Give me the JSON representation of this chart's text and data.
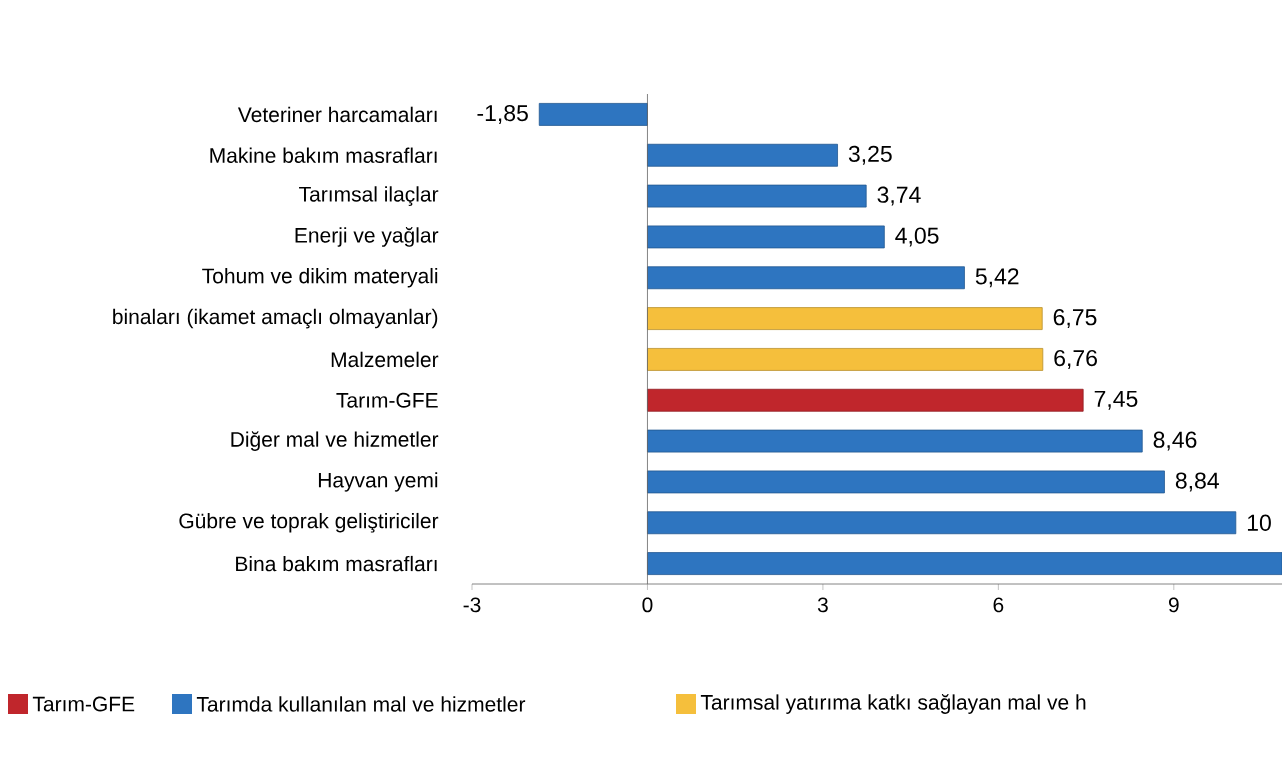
{
  "chart_data": {
    "type": "bar",
    "orientation": "horizontal",
    "categories": [
      "Veteriner harcamaları",
      "Makine bakım masrafları",
      "Tarımsal ilaçlar",
      "Enerji ve yağlar",
      "Tohum ve dikim materyali",
      "binaları (ikamet amaçlı olmayanlar)",
      "Malzemeler",
      "Tarım-GFE",
      "Diğer mal ve hizmetler",
      "Hayvan yemi",
      "Gübre ve toprak geliştiriciler",
      "Bina bakım masrafları"
    ],
    "series": [
      {
        "name": "Tarım-GFE",
        "color": "#c0262c",
        "values": [
          null,
          null,
          null,
          null,
          null,
          null,
          null,
          7.45,
          null,
          null,
          null,
          null
        ],
        "value_labels": [
          null,
          null,
          null,
          null,
          null,
          null,
          null,
          "7,45",
          null,
          null,
          null,
          null
        ]
      },
      {
        "name": "Tarımda kullanılan mal ve hizmetler",
        "color": "#2e75c0",
        "values": [
          -1.85,
          3.25,
          3.74,
          4.05,
          5.42,
          null,
          null,
          null,
          8.46,
          8.84,
          10.06,
          10.85
        ],
        "value_labels": [
          "-1,85",
          "3,25",
          "3,74",
          "4,05",
          "5,42",
          null,
          null,
          null,
          "8,46",
          "8,84",
          "10",
          null
        ]
      },
      {
        "name": "Tarımsal yatırıma katkı sağlayan mal ve h",
        "color": "#f5bf3c",
        "values": [
          null,
          null,
          null,
          null,
          null,
          6.75,
          6.76,
          null,
          null,
          null,
          null,
          null
        ],
        "value_labels": [
          null,
          null,
          null,
          null,
          null,
          "6,75",
          "6,76",
          null,
          null,
          null,
          null,
          null
        ]
      }
    ],
    "xlim": [
      -3,
      10.85
    ],
    "xticks": [
      -3,
      0,
      3,
      6,
      9
    ],
    "legend": "bottom"
  }
}
